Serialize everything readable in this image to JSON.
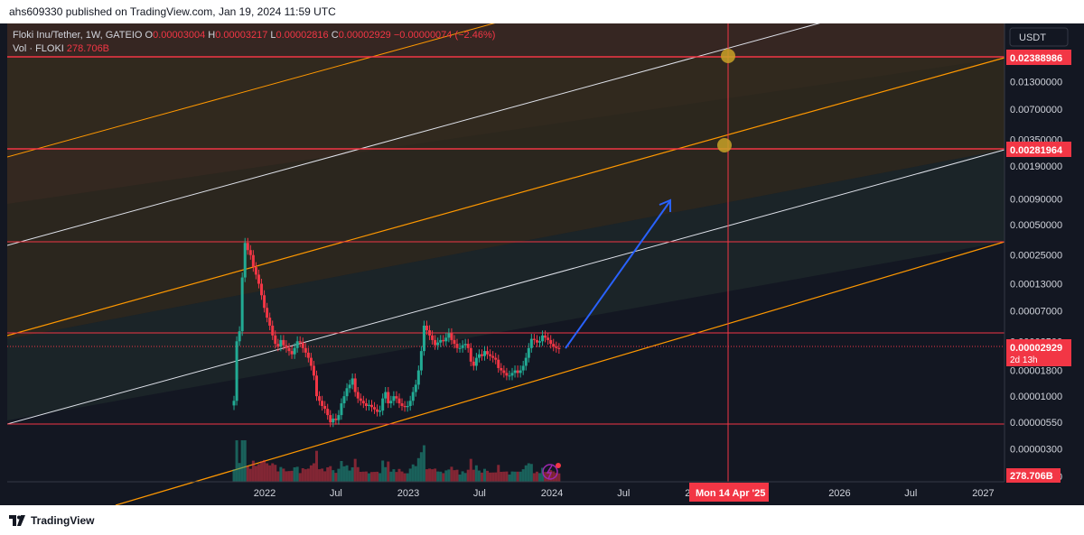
{
  "header": {
    "published_text": "ahs609330 published on TradingView.com, Jan 19, 2024 11:59 UTC"
  },
  "legend": {
    "symbol_line": "Floki Inu/Tether, 1W, GATEIO",
    "o_label": "O",
    "o_value": "0.00003004",
    "h_label": "H",
    "h_value": "0.00003217",
    "l_label": "L",
    "l_value": "0.00002816",
    "c_label": "C",
    "c_value": "0.00002929",
    "change": "−0.00000074 (−2.46%)",
    "vol_label": "Vol · FLOKI",
    "vol_value": "278.706B"
  },
  "footer": {
    "brand": "TradingView"
  },
  "colors": {
    "up": "#22ab94",
    "down": "#f23645",
    "orange": "#ff9800",
    "white_line": "#e0e3eb",
    "hline": "#f23645",
    "arrow": "#2962ff",
    "marker": "#c9a227",
    "bg": "#131722"
  },
  "chart_data": {
    "type": "candlestick",
    "scale": "log",
    "currency": "USDT",
    "y_ticks": [
      "0.01300000",
      "0.00700000",
      "0.00350000",
      "0.00190000",
      "0.00090000",
      "0.00050000",
      "0.00025000",
      "0.00013000",
      "0.00007000",
      "0.00003500",
      "0.00001800",
      "0.00001000",
      "0.00000550",
      "0.00000300",
      "0.00000160"
    ],
    "x_ticks": [
      "2022",
      "Jul",
      "2023",
      "Jul",
      "2024",
      "Jul",
      "2025",
      "2026",
      "Jul",
      "2027"
    ],
    "price_labels": {
      "level_high": "0.02388986",
      "level_mid": "0.00281964",
      "last": "0.00002929",
      "countdown": "2d 13h",
      "volume": "278.706B"
    },
    "crosshair_date": "Mon 14 Apr '25",
    "horizontal_levels": [
      0.02388986,
      0.00281964,
      0.00035,
      3.7e-05,
      5.3e-06
    ],
    "weekly_close_approx": [
      [
        "2021-10-15",
        9e-06
      ],
      [
        "2021-10-22",
        3.5e-05
      ],
      [
        "2021-10-29",
        4.4e-05
      ],
      [
        "2021-11-05",
        0.00015
      ],
      [
        "2021-11-12",
        0.00033
      ],
      [
        "2021-11-19",
        0.00028
      ],
      [
        "2021-11-26",
        0.00025
      ],
      [
        "2021-12-03",
        0.00019
      ],
      [
        "2021-12-10",
        0.00016
      ],
      [
        "2021-12-17",
        0.00013
      ],
      [
        "2021-12-24",
        0.0001
      ],
      [
        "2021-12-31",
        7.5e-05
      ],
      [
        "2022-01-07",
        6e-05
      ],
      [
        "2022-01-14",
        5e-05
      ],
      [
        "2022-01-21",
        4e-05
      ],
      [
        "2022-01-28",
        3.3e-05
      ],
      [
        "2022-02-04",
        3.1e-05
      ],
      [
        "2022-02-11",
        3.6e-05
      ],
      [
        "2022-02-18",
        3.2e-05
      ],
      [
        "2022-02-25",
        3e-05
      ],
      [
        "2022-03-04",
        2.8e-05
      ],
      [
        "2022-03-11",
        2.6e-05
      ],
      [
        "2022-03-18",
        3e-05
      ],
      [
        "2022-03-25",
        3.5e-05
      ],
      [
        "2022-04-01",
        3.4e-05
      ],
      [
        "2022-04-08",
        3e-05
      ],
      [
        "2022-04-15",
        2.7e-05
      ],
      [
        "2022-04-22",
        2.4e-05
      ],
      [
        "2022-04-29",
        2e-05
      ],
      [
        "2022-05-06",
        1.6e-05
      ],
      [
        "2022-05-13",
        1e-05
      ],
      [
        "2022-05-20",
        9e-06
      ],
      [
        "2022-05-27",
        8e-06
      ],
      [
        "2022-06-03",
        7.5e-06
      ],
      [
        "2022-06-10",
        6.5e-06
      ],
      [
        "2022-06-17",
        5.5e-06
      ],
      [
        "2022-06-24",
        6e-06
      ],
      [
        "2022-07-01",
        5.8e-06
      ],
      [
        "2022-07-08",
        6.5e-06
      ],
      [
        "2022-07-15",
        8.5e-06
      ],
      [
        "2022-07-22",
        1e-05
      ],
      [
        "2022-07-29",
        1.2e-05
      ],
      [
        "2022-08-05",
        1.3e-05
      ],
      [
        "2022-08-12",
        1.5e-05
      ],
      [
        "2022-08-19",
        1.1e-05
      ],
      [
        "2022-08-26",
        9.5e-06
      ],
      [
        "2022-09-02",
        9e-06
      ],
      [
        "2022-09-09",
        8.5e-06
      ],
      [
        "2022-09-16",
        8e-06
      ],
      [
        "2022-09-23",
        8.2e-06
      ],
      [
        "2022-09-30",
        7.8e-06
      ],
      [
        "2022-10-07",
        7.4e-06
      ],
      [
        "2022-10-14",
        7e-06
      ],
      [
        "2022-10-21",
        7.2e-06
      ],
      [
        "2022-10-28",
        9.5e-06
      ],
      [
        "2022-11-04",
        1.1e-05
      ],
      [
        "2022-11-11",
        8.5e-06
      ],
      [
        "2022-11-18",
        9e-06
      ],
      [
        "2022-11-25",
        1e-05
      ],
      [
        "2022-12-02",
        9.5e-06
      ],
      [
        "2022-12-09",
        8.5e-06
      ],
      [
        "2022-12-16",
        8e-06
      ],
      [
        "2022-12-23",
        7.8e-06
      ],
      [
        "2022-12-30",
        8e-06
      ],
      [
        "2023-01-06",
        9e-06
      ],
      [
        "2023-01-13",
        1.1e-05
      ],
      [
        "2023-01-20",
        1.3e-05
      ],
      [
        "2023-01-27",
        1.8e-05
      ],
      [
        "2023-02-03",
        2.8e-05
      ],
      [
        "2023-02-10",
        5e-05
      ],
      [
        "2023-02-17",
        4.5e-05
      ],
      [
        "2023-02-24",
        4e-05
      ],
      [
        "2023-03-03",
        3.6e-05
      ],
      [
        "2023-03-10",
        3.2e-05
      ],
      [
        "2023-03-17",
        3.4e-05
      ],
      [
        "2023-03-24",
        3.6e-05
      ],
      [
        "2023-03-31",
        3.5e-05
      ],
      [
        "2023-04-07",
        3.8e-05
      ],
      [
        "2023-04-14",
        4.2e-05
      ],
      [
        "2023-04-21",
        3.6e-05
      ],
      [
        "2023-04-28",
        3.3e-05
      ],
      [
        "2023-05-05",
        3e-05
      ],
      [
        "2023-05-12",
        3e-05
      ],
      [
        "2023-05-19",
        3.2e-05
      ],
      [
        "2023-05-26",
        3.3e-05
      ],
      [
        "2023-06-02",
        3e-05
      ],
      [
        "2023-06-09",
        2.2e-05
      ],
      [
        "2023-06-16",
        2e-05
      ],
      [
        "2023-06-23",
        2.4e-05
      ],
      [
        "2023-06-30",
        2.6e-05
      ],
      [
        "2023-07-07",
        2.5e-05
      ],
      [
        "2023-07-14",
        2.8e-05
      ],
      [
        "2023-07-21",
        2.6e-05
      ],
      [
        "2023-07-28",
        2.5e-05
      ],
      [
        "2023-08-04",
        2.4e-05
      ],
      [
        "2023-08-11",
        2.3e-05
      ],
      [
        "2023-08-18",
        1.9e-05
      ],
      [
        "2023-08-25",
        1.8e-05
      ],
      [
        "2023-09-01",
        1.7e-05
      ],
      [
        "2023-09-08",
        1.6e-05
      ],
      [
        "2023-09-15",
        1.6e-05
      ],
      [
        "2023-09-22",
        1.7e-05
      ],
      [
        "2023-09-29",
        1.8e-05
      ],
      [
        "2023-10-06",
        1.7e-05
      ],
      [
        "2023-10-13",
        1.8e-05
      ],
      [
        "2023-10-20",
        2e-05
      ],
      [
        "2023-10-27",
        2.4e-05
      ],
      [
        "2023-11-03",
        3e-05
      ],
      [
        "2023-11-10",
        3.7e-05
      ],
      [
        "2023-11-17",
        3.6e-05
      ],
      [
        "2023-11-24",
        3.4e-05
      ],
      [
        "2023-12-01",
        3.5e-05
      ],
      [
        "2023-12-08",
        4e-05
      ],
      [
        "2023-12-15",
        3.8e-05
      ],
      [
        "2023-12-22",
        3.6e-05
      ],
      [
        "2023-12-29",
        3.3e-05
      ],
      [
        "2024-01-05",
        3.1e-05
      ],
      [
        "2024-01-12",
        3e-05
      ],
      [
        "2024-01-19",
        2.93e-05
      ]
    ]
  }
}
